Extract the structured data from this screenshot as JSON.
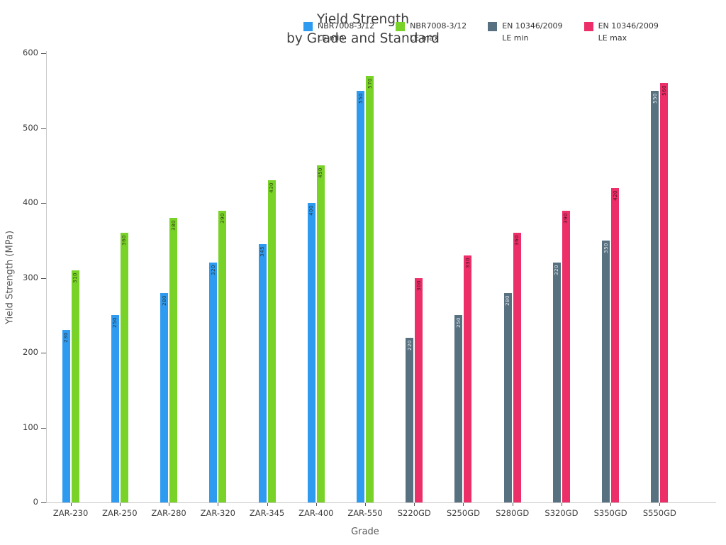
{
  "chart_data": {
    "type": "bar",
    "title": "Yield Strength by Grade and Standard",
    "title_lines": [
      "Yield Strength",
      "by Grade and Standard"
    ],
    "xlabel": "Grade",
    "ylabel": "Yield Strength (MPa)",
    "ylim": [
      0,
      600
    ],
    "yticks": [
      0,
      100,
      200,
      300,
      400,
      500,
      600
    ],
    "grid": false,
    "legend_position": "top",
    "background": "#ffffff",
    "categories": [
      "ZAR-230",
      "ZAR-250",
      "ZAR-280",
      "ZAR-320",
      "ZAR-345",
      "ZAR-400",
      "ZAR-550",
      "S220GD",
      "S250GD",
      "S280GD",
      "S320GD",
      "S350GD",
      "S550GD"
    ],
    "series": [
      {
        "name_lines": [
          "NBR7008-3/12",
          "LE min"
        ],
        "color": "#2e9bf0",
        "label_color": "#253642",
        "values": [
          230,
          250,
          280,
          320,
          345,
          400,
          550,
          null,
          null,
          null,
          null,
          null,
          null
        ]
      },
      {
        "name_lines": [
          "NBR7008-3/12",
          "LE max"
        ],
        "color": "#79d228",
        "label_color": "#2f4413",
        "values": [
          310,
          360,
          380,
          390,
          430,
          450,
          570,
          null,
          null,
          null,
          null,
          null,
          null
        ]
      },
      {
        "name_lines": [
          "EN 10346/2009",
          "LE min"
        ],
        "color": "#577181",
        "label_color": "#e9eef1",
        "values": [
          null,
          null,
          null,
          null,
          null,
          null,
          null,
          220,
          250,
          280,
          320,
          350,
          550
        ]
      },
      {
        "name_lines": [
          "EN 10346/2009",
          "LE max"
        ],
        "color": "#ec2f68",
        "label_color": "#470e22",
        "values": [
          null,
          null,
          null,
          null,
          null,
          null,
          null,
          300,
          330,
          360,
          390,
          420,
          560
        ]
      }
    ]
  }
}
